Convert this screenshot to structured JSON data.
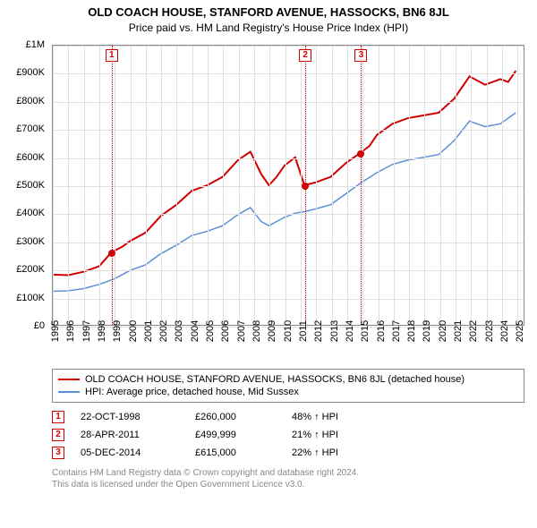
{
  "title": "OLD COACH HOUSE, STANFORD AVENUE, HASSOCKS, BN6 8JL",
  "subtitle": "Price paid vs. HM Land Registry's House Price Index (HPI)",
  "chart": {
    "type": "line",
    "background_color": "#ffffff",
    "grid_color": "#e0e0e0",
    "axis_color": "#888888",
    "xlim": [
      1995,
      2025.5
    ],
    "ylim": [
      0,
      1000000
    ],
    "yticks": [
      0,
      100000,
      200000,
      300000,
      400000,
      500000,
      600000,
      700000,
      800000,
      900000,
      1000000
    ],
    "ytick_labels": [
      "£0",
      "£100K",
      "£200K",
      "£300K",
      "£400K",
      "£500K",
      "£600K",
      "£700K",
      "£800K",
      "£900K",
      "£1M"
    ],
    "xticks": [
      1995,
      1996,
      1997,
      1998,
      1999,
      2000,
      2001,
      2002,
      2003,
      2004,
      2005,
      2006,
      2007,
      2008,
      2009,
      2010,
      2011,
      2012,
      2013,
      2014,
      2015,
      2016,
      2017,
      2018,
      2019,
      2020,
      2021,
      2022,
      2023,
      2024,
      2025
    ],
    "series": [
      {
        "name": "property",
        "label": "OLD COACH HOUSE, STANFORD AVENUE, HASSOCKS, BN6 8JL (detached house)",
        "color": "#d00000",
        "line_width": 2,
        "data": [
          [
            1995,
            180000
          ],
          [
            1996,
            178000
          ],
          [
            1997,
            190000
          ],
          [
            1998,
            210000
          ],
          [
            1998.8,
            260000
          ],
          [
            1999.5,
            280000
          ],
          [
            2000,
            300000
          ],
          [
            2001,
            330000
          ],
          [
            2002,
            390000
          ],
          [
            2003,
            430000
          ],
          [
            2004,
            480000
          ],
          [
            2005,
            500000
          ],
          [
            2006,
            530000
          ],
          [
            2007,
            590000
          ],
          [
            2007.8,
            620000
          ],
          [
            2008.5,
            540000
          ],
          [
            2009,
            500000
          ],
          [
            2009.5,
            530000
          ],
          [
            2010,
            570000
          ],
          [
            2010.7,
            600000
          ],
          [
            2011.3,
            499999
          ],
          [
            2012,
            510000
          ],
          [
            2013,
            530000
          ],
          [
            2014,
            580000
          ],
          [
            2014.9,
            615000
          ],
          [
            2015.5,
            640000
          ],
          [
            2016,
            680000
          ],
          [
            2017,
            720000
          ],
          [
            2018,
            740000
          ],
          [
            2019,
            750000
          ],
          [
            2020,
            760000
          ],
          [
            2021,
            810000
          ],
          [
            2022,
            890000
          ],
          [
            2023,
            860000
          ],
          [
            2024,
            880000
          ],
          [
            2024.5,
            870000
          ],
          [
            2025,
            910000
          ]
        ]
      },
      {
        "name": "hpi",
        "label": "HPI: Average price, detached house, Mid Sussex",
        "color": "#5b8fd6",
        "line_width": 1.5,
        "data": [
          [
            1995,
            120000
          ],
          [
            1996,
            122000
          ],
          [
            1997,
            130000
          ],
          [
            1998,
            145000
          ],
          [
            1999,
            165000
          ],
          [
            2000,
            195000
          ],
          [
            2001,
            215000
          ],
          [
            2002,
            255000
          ],
          [
            2003,
            285000
          ],
          [
            2004,
            320000
          ],
          [
            2005,
            335000
          ],
          [
            2006,
            355000
          ],
          [
            2007,
            395000
          ],
          [
            2007.8,
            420000
          ],
          [
            2008.5,
            370000
          ],
          [
            2009,
            355000
          ],
          [
            2010,
            385000
          ],
          [
            2010.7,
            400000
          ],
          [
            2011.3,
            405000
          ],
          [
            2012,
            415000
          ],
          [
            2013,
            430000
          ],
          [
            2014,
            470000
          ],
          [
            2015,
            510000
          ],
          [
            2016,
            545000
          ],
          [
            2017,
            575000
          ],
          [
            2018,
            590000
          ],
          [
            2019,
            600000
          ],
          [
            2020,
            610000
          ],
          [
            2021,
            660000
          ],
          [
            2022,
            730000
          ],
          [
            2023,
            710000
          ],
          [
            2024,
            720000
          ],
          [
            2025,
            760000
          ]
        ]
      }
    ],
    "transactions": [
      {
        "n": "1",
        "x": 1998.8,
        "date": "22-OCT-1998",
        "price_val": 260000,
        "price": "£260,000",
        "pct": "48% ↑ HPI"
      },
      {
        "n": "2",
        "x": 2011.3,
        "date": "28-APR-2011",
        "price_val": 499999,
        "price": "£499,999",
        "pct": "21% ↑ HPI"
      },
      {
        "n": "3",
        "x": 2014.9,
        "date": "05-DEC-2014",
        "price_val": 615000,
        "price": "£615,000",
        "pct": "22% ↑ HPI"
      }
    ],
    "label_fontsize": 11,
    "title_fontsize": 13
  },
  "legend": {
    "items": [
      {
        "color": "#d00000",
        "label": "OLD COACH HOUSE, STANFORD AVENUE, HASSOCKS, BN6 8JL (detached house)"
      },
      {
        "color": "#5b8fd6",
        "label": "HPI: Average price, detached house, Mid Sussex"
      }
    ]
  },
  "footnote_line1": "Contains HM Land Registry data © Crown copyright and database right 2024.",
  "footnote_line2": "This data is licensed under the Open Government Licence v3.0."
}
